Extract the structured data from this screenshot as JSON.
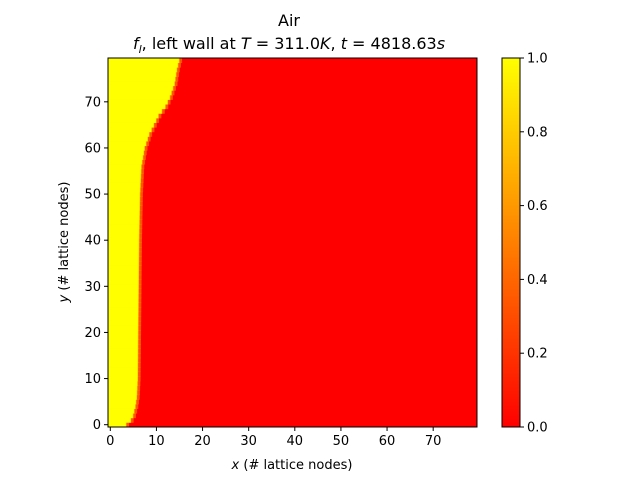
{
  "chart_data": {
    "type": "heatmap",
    "title": "Air",
    "subtitle": "f_l, left wall at T = 311.0K, t = 4818.63s",
    "subtitle_parts": {
      "sym": "f",
      "sub": "l",
      "text1": ", left wall at ",
      "tsym": "T",
      "teq": " = 311.0",
      "tunit": "K",
      "sep": ", ",
      "timesym": "t",
      "timeeq": " = 4818.63",
      "timeunit": "s"
    },
    "xlabel": {
      "var": "x",
      "text": " (# lattice nodes)"
    },
    "ylabel": {
      "var": "y",
      "text": " (# lattice nodes)"
    },
    "grid": {
      "nx": 80,
      "ny": 80
    },
    "xlim": [
      -0.5,
      79.5
    ],
    "ylim": [
      -0.5,
      79.5
    ],
    "xticks": [
      0,
      10,
      20,
      30,
      40,
      50,
      60,
      70
    ],
    "yticks": [
      0,
      10,
      20,
      30,
      40,
      50,
      60,
      70
    ],
    "colorbar": {
      "colormap": "autumn",
      "range": [
        0.0,
        1.0
      ],
      "ticks": [
        "0.0",
        "0.2",
        "0.4",
        "0.6",
        "0.8",
        "1.0"
      ],
      "low_color": "#ff0000",
      "high_color": "#ffff00"
    },
    "description": "liquid fraction field; values 1.0 (liquid) left of the melt front, 0.0 (solid) to the right",
    "melt_front": [
      {
        "y": 0,
        "x": 3.5
      },
      {
        "y": 1,
        "x": 4.5
      },
      {
        "y": 2,
        "x": 5.0
      },
      {
        "y": 4,
        "x": 5.5
      },
      {
        "y": 6,
        "x": 5.8
      },
      {
        "y": 10,
        "x": 6.0
      },
      {
        "y": 20,
        "x": 6.1
      },
      {
        "y": 30,
        "x": 6.2
      },
      {
        "y": 40,
        "x": 6.3
      },
      {
        "y": 50,
        "x": 6.5
      },
      {
        "y": 56,
        "x": 6.8
      },
      {
        "y": 60,
        "x": 7.5
      },
      {
        "y": 63,
        "x": 8.5
      },
      {
        "y": 65,
        "x": 9.5
      },
      {
        "y": 67,
        "x": 10.5
      },
      {
        "y": 69,
        "x": 12.0
      },
      {
        "y": 71,
        "x": 13.0
      },
      {
        "y": 74,
        "x": 14.0
      },
      {
        "y": 77,
        "x": 14.5
      },
      {
        "y": 79,
        "x": 15.0
      }
    ]
  }
}
